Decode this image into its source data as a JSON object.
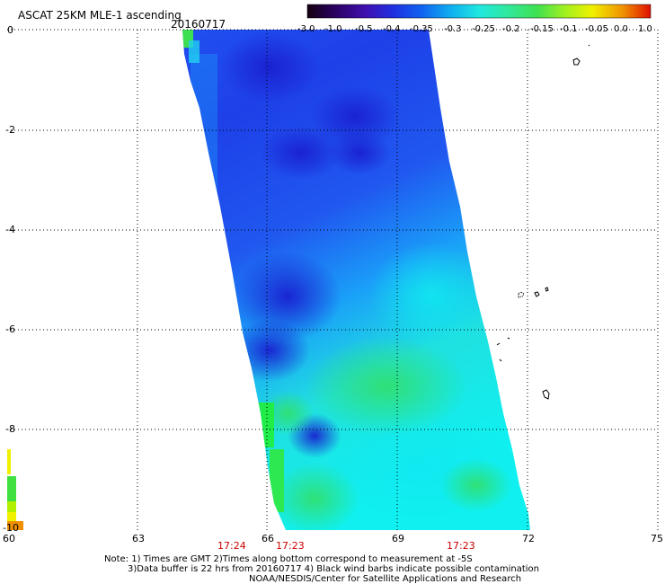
{
  "header": {
    "title": "ASCAT 25KM MLE-1 ascending",
    "date": "20160717"
  },
  "colorbar": {
    "labels": [
      "-3.0",
      "-1.0",
      "-0.5",
      "-0.4",
      "-0.35",
      "-0.3",
      "-0.25",
      "-0.2",
      "-0.15",
      "-0.1",
      "-0.05",
      "0.0",
      "1.0"
    ],
    "colors": [
      "#1a0010",
      "#2a0050",
      "#3c10a0",
      "#2030d0",
      "#1060e0",
      "#10a0f0",
      "#20e0e0",
      "#30e0a0",
      "#40e050",
      "#80f020",
      "#f0f000",
      "#f0a000",
      "#e02000"
    ]
  },
  "map": {
    "lon_ticks": [
      "60",
      "63",
      "66",
      "69",
      "72",
      "75"
    ],
    "lat_ticks": [
      "0",
      "-2",
      "-4",
      "-6",
      "-8",
      "-10"
    ],
    "grid": true,
    "swath_colors": {
      "deep_blue": "#1c30e0",
      "blue": "#2060f0",
      "light_blue": "#1a90f8",
      "cyan": "#10e8f0",
      "aqua": "#20f0c0",
      "green": "#30e060"
    }
  },
  "time_labels": [
    "17:24",
    "17:23",
    "17:23"
  ],
  "footer": {
    "line1": "Note: 1) Times are GMT 2)Times along bottom correspond to measurement at -5S",
    "line2": "3)Data buffer is 22 hrs from 20160717 4) Black wind barbs indicate possible contamination",
    "line3": "NOAA/NESDIS/Center for Satellite Applications and Research"
  }
}
